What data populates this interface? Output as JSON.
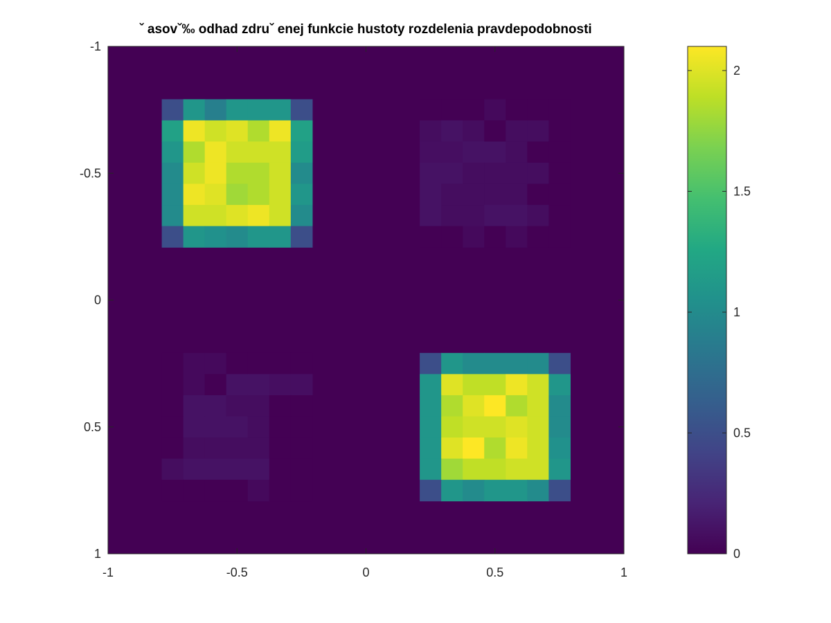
{
  "chart_data": {
    "type": "heatmap",
    "title": "ˇ asovˇ‰ odhad zdruˇ enej funkcie hustoty rozdelenia pravdepodobnosti",
    "colormap": "viridis",
    "x_range": [
      -1,
      1
    ],
    "y_range": [
      -1,
      1
    ],
    "y_axis_direction": "reversed",
    "x_ticks": [
      "-1",
      "-0.5",
      "0",
      "0.5",
      "1"
    ],
    "y_ticks": [
      "-1",
      "-0.5",
      "0",
      "0.5",
      "1"
    ],
    "colorbar": {
      "range": [
        0,
        2.1
      ],
      "ticks": [
        "0",
        "0.5",
        "1",
        "1.5",
        "2"
      ]
    },
    "grid_size": [
      24,
      24
    ],
    "cell_size": 0.0833,
    "regions": [
      {
        "name": "upper-left-block",
        "x_range": [
          -0.75,
          -0.25
        ],
        "y_range": [
          -0.75,
          -0.25
        ],
        "values": [
          [
            0.5,
            1.1,
            0.9,
            1.1,
            1.1,
            1.1,
            0.5
          ],
          [
            1.2,
            2.05,
            1.95,
            2.0,
            1.85,
            2.05,
            1.2
          ],
          [
            1.1,
            1.85,
            2.05,
            1.95,
            1.95,
            1.95,
            1.15
          ],
          [
            1.0,
            1.95,
            2.05,
            1.85,
            1.85,
            1.95,
            1.0
          ],
          [
            1.0,
            2.05,
            2.0,
            1.8,
            1.85,
            1.95,
            1.1
          ],
          [
            1.0,
            1.95,
            1.95,
            2.0,
            2.05,
            1.95,
            1.0
          ],
          [
            0.5,
            1.1,
            1.05,
            1.0,
            1.1,
            1.1,
            0.5
          ]
        ]
      },
      {
        "name": "lower-right-block",
        "x_range": [
          0.25,
          0.75
        ],
        "y_range": [
          0.25,
          0.75
        ],
        "values": [
          [
            0.5,
            1.1,
            1.0,
            1.0,
            1.0,
            1.0,
            0.5
          ],
          [
            1.1,
            2.0,
            1.9,
            1.9,
            2.05,
            1.95,
            1.1
          ],
          [
            1.1,
            1.85,
            2.0,
            2.1,
            1.85,
            1.95,
            1.0
          ],
          [
            1.1,
            1.9,
            1.95,
            1.95,
            2.0,
            1.95,
            1.0
          ],
          [
            1.1,
            2.0,
            2.1,
            1.85,
            2.05,
            1.95,
            1.05
          ],
          [
            1.1,
            1.8,
            1.9,
            1.9,
            1.95,
            1.95,
            1.1
          ],
          [
            0.5,
            1.1,
            1.0,
            1.1,
            1.1,
            1.0,
            0.5
          ]
        ]
      },
      {
        "name": "upper-right-faint",
        "x_range": [
          0.25,
          0.75
        ],
        "y_range": [
          -0.75,
          -0.25
        ],
        "values": [
          [
            0.0,
            0.0,
            0.0,
            0.05,
            0.0,
            0.0,
            0.0
          ],
          [
            0.07,
            0.1,
            0.07,
            0.0,
            0.07,
            0.07,
            0.0
          ],
          [
            0.08,
            0.08,
            0.1,
            0.1,
            0.07,
            0.0,
            0.0
          ],
          [
            0.1,
            0.1,
            0.07,
            0.07,
            0.07,
            0.07,
            0.0
          ],
          [
            0.1,
            0.07,
            0.07,
            0.07,
            0.07,
            0.0,
            0.0
          ],
          [
            0.1,
            0.07,
            0.07,
            0.1,
            0.1,
            0.07,
            0.0
          ],
          [
            0.0,
            0.0,
            0.05,
            0.0,
            0.05,
            0.0,
            0.0
          ]
        ]
      },
      {
        "name": "lower-left-faint",
        "x_range": [
          -0.75,
          -0.25
        ],
        "y_range": [
          0.25,
          0.75
        ],
        "values": [
          [
            0.0,
            0.05,
            0.05,
            0.0,
            0.0,
            0.0,
            0.0
          ],
          [
            0.0,
            0.05,
            0.0,
            0.1,
            0.1,
            0.08,
            0.08
          ],
          [
            0.0,
            0.1,
            0.1,
            0.07,
            0.07,
            0.0,
            0.0
          ],
          [
            0.0,
            0.1,
            0.1,
            0.1,
            0.07,
            0.0,
            0.0
          ],
          [
            0.0,
            0.07,
            0.07,
            0.07,
            0.07,
            0.0,
            0.0
          ],
          [
            0.07,
            0.1,
            0.1,
            0.1,
            0.1,
            0.0,
            0.0
          ],
          [
            0.0,
            0.0,
            0.0,
            0.0,
            0.05,
            0.0,
            0.0
          ]
        ]
      }
    ]
  }
}
